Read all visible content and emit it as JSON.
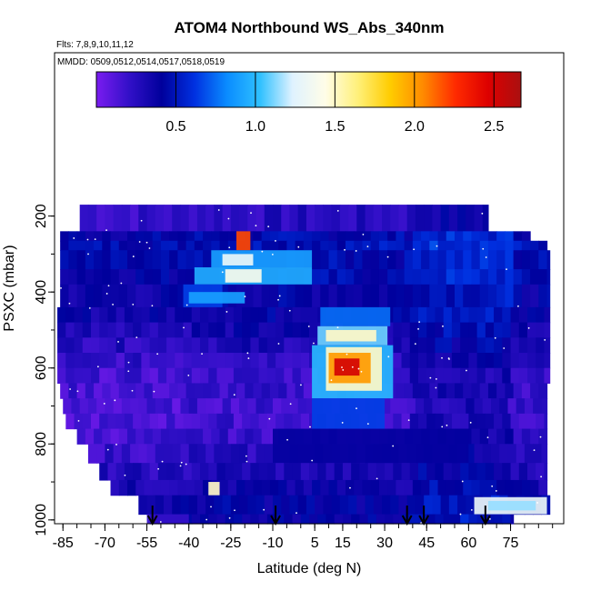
{
  "chart_data": {
    "type": "heatmap",
    "title": "ATOM4 Northbound WS_Abs_340nm",
    "flights_note": "Flts: 7,8,9,10,11,12",
    "dates_note": "MMDD: 0509,0512,0514,0517,0518,0519",
    "xlabel": "Latitude (deg N)",
    "ylabel": "PSXC (mbar)",
    "x_ticks": [
      -85,
      -70,
      -55,
      -40,
      -25,
      -10,
      5,
      15,
      30,
      45,
      60,
      75
    ],
    "x_range": [
      -88,
      94
    ],
    "y_ticks": [
      200,
      400,
      600,
      800,
      1000
    ],
    "y_range": [
      1010,
      -230
    ],
    "colorbar": {
      "min": 0.0,
      "max": 2.67,
      "ticks": [
        0.5,
        1.0,
        1.5,
        2.0,
        2.5
      ],
      "colors": [
        "#7a1cf0",
        "#3210c8",
        "#00009c",
        "#0030e0",
        "#0a8cff",
        "#2ec0ff",
        "#dff2ff",
        "#fffde8",
        "#fff07a",
        "#ffcc00",
        "#ff8a00",
        "#ff2a00",
        "#dd0000",
        "#aa1010"
      ]
    },
    "arrow_latitudes": [
      -53,
      -9,
      38,
      44,
      66
    ],
    "rows": [
      {
        "p": [
          170,
          240
        ],
        "lat": [
          -79,
          67
        ],
        "bg": 0.25
      },
      {
        "p": [
          240,
          265
        ],
        "lat": [
          -86,
          82
        ],
        "bg": 0.45
      },
      {
        "p": [
          265,
          290
        ],
        "lat": [
          -86,
          88
        ],
        "bg": 0.5
      },
      {
        "p": [
          290,
          340
        ],
        "lat": [
          -86,
          89
        ],
        "bg": 0.45
      },
      {
        "p": [
          340,
          380
        ],
        "lat": [
          -86,
          89
        ],
        "bg": 0.45
      },
      {
        "p": [
          380,
          440
        ],
        "lat": [
          -86,
          89
        ],
        "bg": 0.4
      },
      {
        "p": [
          440,
          480
        ],
        "lat": [
          -87,
          89
        ],
        "bg": 0.4
      },
      {
        "p": [
          480,
          520
        ],
        "lat": [
          -87,
          89
        ],
        "bg": 0.35
      },
      {
        "p": [
          520,
          560
        ],
        "lat": [
          -87,
          89
        ],
        "bg": 0.3
      },
      {
        "p": [
          560,
          600
        ],
        "lat": [
          -87,
          89
        ],
        "bg": 0.25
      },
      {
        "p": [
          600,
          640
        ],
        "lat": [
          -87,
          89
        ],
        "bg": 0.2
      },
      {
        "p": [
          640,
          680
        ],
        "lat": [
          -86,
          88
        ],
        "bg": 0.2
      },
      {
        "p": [
          680,
          720
        ],
        "lat": [
          -85,
          88
        ],
        "bg": 0.18
      },
      {
        "p": [
          720,
          760
        ],
        "lat": [
          -84,
          88
        ],
        "bg": 0.18
      },
      {
        "p": [
          760,
          800
        ],
        "lat": [
          -80,
          88
        ],
        "bg": 0.2
      },
      {
        "p": [
          800,
          850
        ],
        "lat": [
          -76,
          88
        ],
        "bg": 0.25
      },
      {
        "p": [
          850,
          895
        ],
        "lat": [
          -72,
          88
        ],
        "bg": 0.3
      },
      {
        "p": [
          895,
          935
        ],
        "lat": [
          -68,
          88
        ],
        "bg": 0.35
      },
      {
        "p": [
          935,
          985
        ],
        "lat": [
          -58,
          89
        ],
        "bg": 0.4
      },
      {
        "p": [
          985,
          1010
        ],
        "lat": [
          -54,
          76
        ],
        "bg": 0.4
      }
    ],
    "features": [
      {
        "lat": [
          -23,
          -18
        ],
        "p": [
          240,
          290
        ],
        "v": 2.2
      },
      {
        "lat": [
          -32,
          4
        ],
        "p": [
          290,
          335
        ],
        "v": 0.9
      },
      {
        "lat": [
          -28,
          -17
        ],
        "p": [
          300,
          330
        ],
        "v": 1.3
      },
      {
        "lat": [
          -38,
          4
        ],
        "p": [
          335,
          380
        ],
        "v": 0.95
      },
      {
        "lat": [
          -27,
          -14
        ],
        "p": [
          340,
          375
        ],
        "v": 1.4
      },
      {
        "lat": [
          -42,
          -28
        ],
        "p": [
          380,
          440
        ],
        "v": 0.65
      },
      {
        "lat": [
          -40,
          -20
        ],
        "p": [
          400,
          430
        ],
        "v": 0.9
      },
      {
        "lat": [
          7,
          32
        ],
        "p": [
          440,
          490
        ],
        "v": 0.75
      },
      {
        "lat": [
          6,
          31
        ],
        "p": [
          490,
          540
        ],
        "v": 1.1
      },
      {
        "lat": [
          9,
          27
        ],
        "p": [
          500,
          530
        ],
        "v": 1.5
      },
      {
        "lat": [
          4,
          33
        ],
        "p": [
          540,
          680
        ],
        "v": 1.0
      },
      {
        "lat": [
          9,
          29
        ],
        "p": [
          545,
          660
        ],
        "v": 1.5
      },
      {
        "lat": [
          10,
          25
        ],
        "p": [
          560,
          640
        ],
        "v": 2.0
      },
      {
        "lat": [
          12,
          21
        ],
        "p": [
          575,
          620
        ],
        "v": 2.5
      },
      {
        "lat": [
          4,
          30
        ],
        "p": [
          680,
          760
        ],
        "v": 0.65
      },
      {
        "lat": [
          -10,
          60
        ],
        "p": [
          760,
          850
        ],
        "v": 0.4
      },
      {
        "lat": [
          -33,
          -29
        ],
        "p": [
          900,
          935
        ],
        "v": 1.5
      },
      {
        "lat": [
          62,
          88
        ],
        "p": [
          940,
          985
        ],
        "v": 1.3
      },
      {
        "lat": [
          67,
          84
        ],
        "p": [
          950,
          975
        ],
        "v": 1.15
      },
      {
        "lat": [
          -55,
          -40
        ],
        "p": [
          985,
          1010
        ],
        "v": 0.2
      }
    ]
  }
}
